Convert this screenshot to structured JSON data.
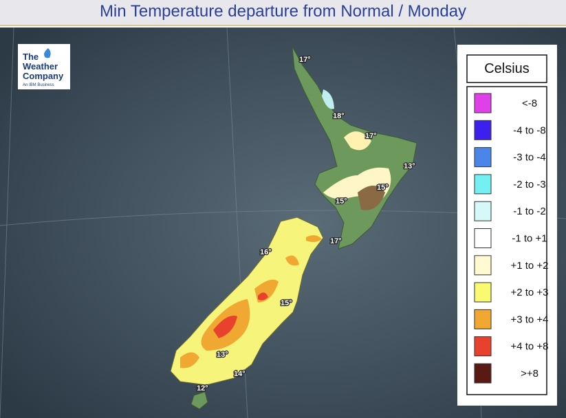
{
  "title": "Min Temperature departure from Normal / Monday",
  "logo": {
    "lines": [
      "The",
      "Weather",
      "Company"
    ],
    "tagline": "An IBM Business"
  },
  "legend": {
    "title": "Celsius",
    "items": [
      {
        "label": "<-8",
        "color": "#e040e8"
      },
      {
        "label": "-4 to -8",
        "color": "#3c20ee"
      },
      {
        "label": "-3 to -4",
        "color": "#4a86ea"
      },
      {
        "label": "-2 to -3",
        "color": "#74f0f2"
      },
      {
        "label": "-1 to -2",
        "color": "#d6f8f8"
      },
      {
        "label": "-1 to +1",
        "color": "#ffffff"
      },
      {
        "label": "+1 to +2",
        "color": "#fffad2"
      },
      {
        "label": "+2 to +3",
        "color": "#fafa72"
      },
      {
        "label": "+3 to +4",
        "color": "#f0a832"
      },
      {
        "label": "+4 to +8",
        "color": "#e8422e"
      },
      {
        "label": ">+8",
        "color": "#5a1a14"
      }
    ]
  },
  "temperatures": [
    "17°",
    "18°",
    "17°",
    "13°",
    "15°",
    "15°",
    "17°",
    "16°",
    "15°",
    "13°",
    "14°",
    "12°"
  ]
}
